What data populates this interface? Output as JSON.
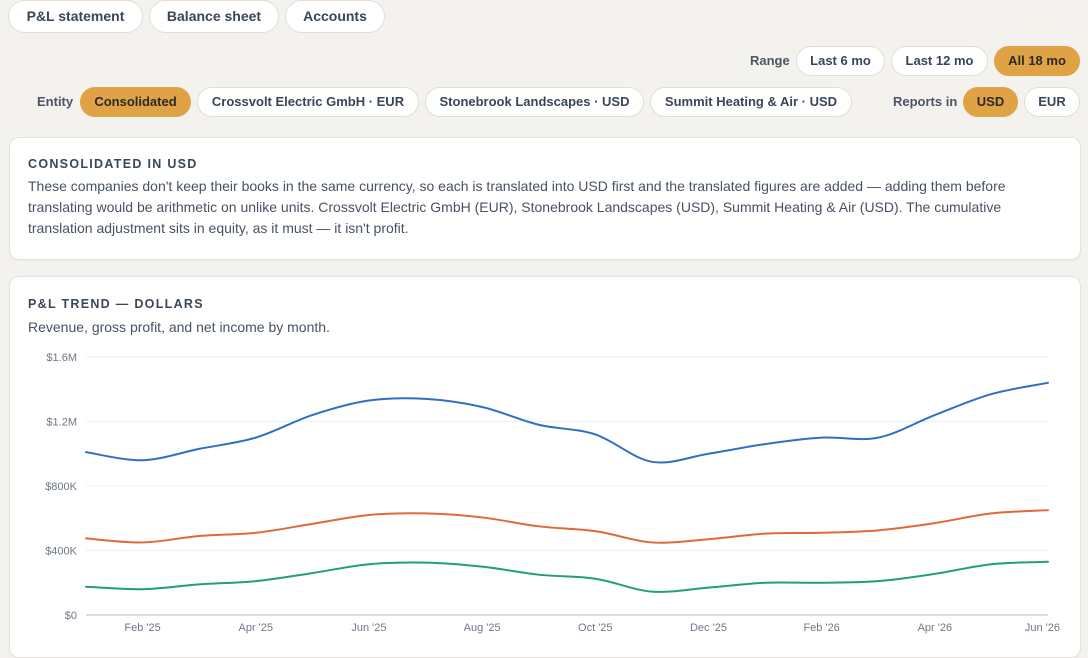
{
  "tabs": [
    {
      "label": "P&L statement"
    },
    {
      "label": "Balance sheet"
    },
    {
      "label": "Accounts"
    }
  ],
  "range": {
    "label": "Range",
    "options": [
      "Last 6 mo",
      "Last 12 mo",
      "All 18 mo"
    ],
    "selected": "All 18 mo"
  },
  "entity": {
    "label": "Entity",
    "options": [
      "Consolidated",
      "Crossvolt Electric GmbH · EUR",
      "Stonebrook Landscapes · USD",
      "Summit Heating & Air · USD"
    ],
    "selected": "Consolidated"
  },
  "reports_in": {
    "label": "Reports in",
    "options": [
      "USD",
      "EUR"
    ],
    "selected": "USD"
  },
  "info_card": {
    "title": "CONSOLIDATED IN USD",
    "body": "These companies don't keep their books in the same currency, so each is translated into USD first and the translated figures are added — adding them before translating would be arithmetic on unlike units. Crossvolt Electric GmbH (EUR), Stonebrook Landscapes (USD), Summit Heating & Air (USD). The cumulative translation adjustment sits in equity, as it must — it isn't profit."
  },
  "trend_card": {
    "title": "P&L TREND — DOLLARS",
    "subtitle": "Revenue, gross profit, and net income by month."
  },
  "chart_data": {
    "type": "line",
    "x": [
      "Jan '25",
      "Feb '25",
      "Mar '25",
      "Apr '25",
      "May '25",
      "Jun '25",
      "Jul '25",
      "Aug '25",
      "Sep '25",
      "Oct '25",
      "Nov '25",
      "Dec '25",
      "Jan '26",
      "Feb '26",
      "Mar '26",
      "Apr '26",
      "May '26",
      "Jun '26"
    ],
    "x_tick_labels": [
      "Feb '25",
      "Apr '25",
      "Jun '25",
      "Aug '25",
      "Oct '25",
      "Dec '25",
      "Feb '26",
      "Apr '26",
      "Jun '26"
    ],
    "y_tick_labels": [
      "$0",
      "$400K",
      "$800K",
      "$1.2M",
      "$1.6M"
    ],
    "ylim": [
      0,
      1600000
    ],
    "grid": true,
    "series": [
      {
        "color": "#2f6fc4",
        "values": [
          1010000,
          960000,
          1030000,
          1100000,
          1240000,
          1330000,
          1340000,
          1290000,
          1180000,
          1120000,
          950000,
          1000000,
          1060000,
          1100000,
          1100000,
          1240000,
          1370000,
          1440000
        ]
      },
      {
        "color": "#e0693a",
        "values": [
          475000,
          450000,
          490000,
          510000,
          565000,
          620000,
          630000,
          605000,
          550000,
          520000,
          450000,
          470000,
          505000,
          510000,
          525000,
          570000,
          630000,
          650000
        ]
      },
      {
        "color": "#24a06f",
        "values": [
          175000,
          160000,
          190000,
          210000,
          260000,
          315000,
          325000,
          300000,
          250000,
          225000,
          145000,
          170000,
          200000,
          200000,
          210000,
          255000,
          315000,
          330000
        ]
      }
    ]
  }
}
